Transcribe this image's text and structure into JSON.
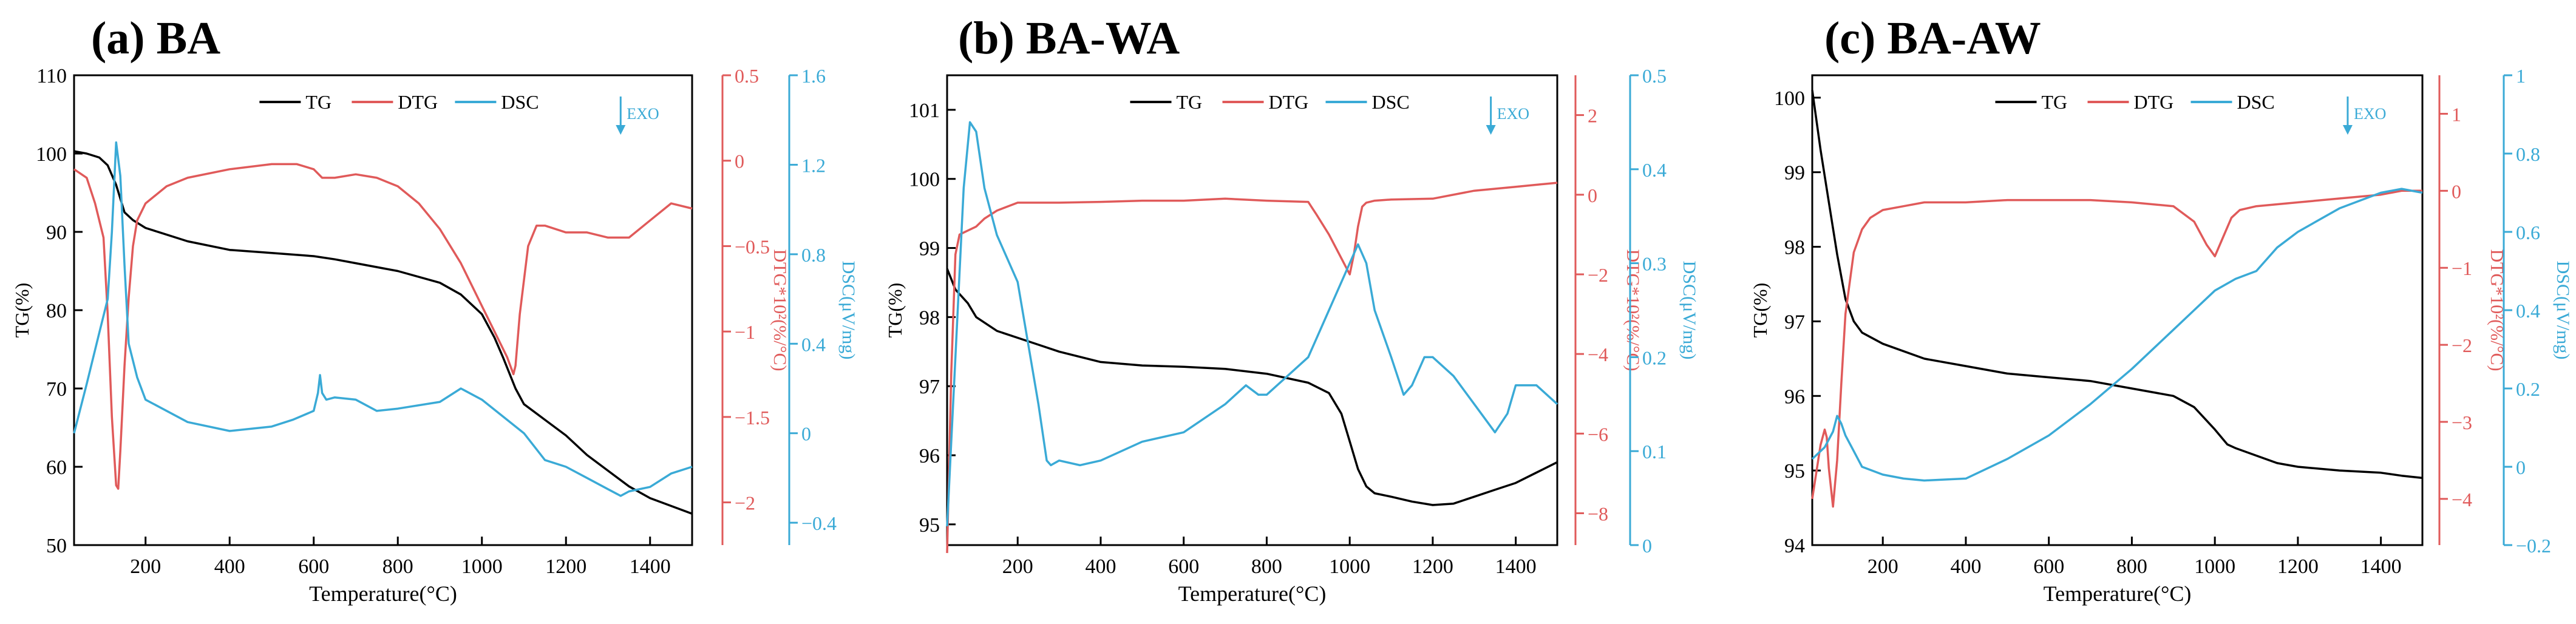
{
  "chart_data": [
    {
      "type": "line",
      "panel_label": "(a) BA",
      "xlabel": "Temperature(°C)",
      "xlim": [
        30,
        1500
      ],
      "xticks": [
        200,
        400,
        600,
        800,
        1000,
        1200,
        1400
      ],
      "y_left": {
        "label": "TG(%)",
        "lim": [
          50,
          110
        ],
        "ticks": [
          50,
          60,
          70,
          80,
          90,
          100,
          110
        ]
      },
      "y_mid": {
        "label": "DTG*10²(%/°C)",
        "lim": [
          -2.25,
          0.5
        ],
        "ticks": [
          -2.0,
          -1.5,
          -1.0,
          -0.5,
          0.0,
          0.5
        ]
      },
      "y_right": {
        "label": "DSC(μV/mg)",
        "lim": [
          -0.5,
          1.6
        ],
        "ticks": [
          -0.4,
          0.0,
          0.4,
          0.8,
          1.2,
          1.6
        ]
      },
      "exo_label": "EXO",
      "exo_x": 1330,
      "legend": [
        {
          "label": "TG",
          "color": "#000000"
        },
        {
          "label": "DTG",
          "color": "#e05a5a"
        },
        {
          "label": "DSC",
          "color": "#3aaad6"
        }
      ],
      "series": [
        {
          "name": "TG",
          "axis": "left",
          "color": "#000000",
          "x": [
            30,
            60,
            90,
            110,
            130,
            150,
            170,
            200,
            300,
            400,
            500,
            600,
            650,
            700,
            800,
            900,
            950,
            1000,
            1030,
            1050,
            1080,
            1100,
            1150,
            1200,
            1250,
            1300,
            1350,
            1400,
            1450,
            1500
          ],
          "y": [
            100.3,
            100.0,
            99.5,
            98.5,
            96.0,
            92.5,
            91.5,
            90.5,
            88.8,
            87.7,
            87.3,
            86.9,
            86.5,
            86.0,
            85.0,
            83.5,
            82.0,
            79.5,
            76.5,
            74.0,
            70.0,
            68.0,
            66.0,
            64.0,
            61.5,
            59.5,
            57.5,
            56.0,
            55.0,
            54.0
          ]
        },
        {
          "name": "DTG",
          "axis": "mid",
          "color": "#e05a5a",
          "x": [
            30,
            60,
            80,
            100,
            110,
            120,
            130,
            135,
            140,
            150,
            160,
            170,
            180,
            200,
            250,
            300,
            400,
            500,
            560,
            600,
            620,
            650,
            700,
            750,
            800,
            850,
            900,
            950,
            1000,
            1030,
            1060,
            1075,
            1080,
            1090,
            1110,
            1130,
            1150,
            1200,
            1250,
            1300,
            1350,
            1400,
            1450,
            1500
          ],
          "y": [
            -0.05,
            -0.1,
            -0.25,
            -0.45,
            -0.9,
            -1.5,
            -1.9,
            -1.92,
            -1.7,
            -1.2,
            -0.8,
            -0.5,
            -0.35,
            -0.25,
            -0.15,
            -0.1,
            -0.05,
            -0.02,
            -0.02,
            -0.05,
            -0.1,
            -0.1,
            -0.08,
            -0.1,
            -0.15,
            -0.25,
            -0.4,
            -0.6,
            -0.85,
            -1.0,
            -1.15,
            -1.25,
            -1.2,
            -0.9,
            -0.5,
            -0.38,
            -0.38,
            -0.42,
            -0.42,
            -0.45,
            -0.45,
            -0.35,
            -0.25,
            -0.28
          ]
        },
        {
          "name": "DSC",
          "axis": "right",
          "color": "#3aaad6",
          "x": [
            30,
            60,
            90,
            110,
            120,
            130,
            140,
            150,
            160,
            180,
            200,
            300,
            400,
            500,
            550,
            600,
            610,
            615,
            620,
            630,
            650,
            700,
            750,
            800,
            900,
            950,
            1000,
            1100,
            1150,
            1200,
            1250,
            1300,
            1330,
            1350,
            1400,
            1450,
            1500
          ],
          "y": [
            0.0,
            0.22,
            0.45,
            0.6,
            0.9,
            1.3,
            1.15,
            0.75,
            0.4,
            0.25,
            0.15,
            0.05,
            0.01,
            0.03,
            0.06,
            0.1,
            0.18,
            0.26,
            0.18,
            0.15,
            0.16,
            0.15,
            0.1,
            0.11,
            0.14,
            0.2,
            0.15,
            0.0,
            -0.12,
            -0.15,
            -0.2,
            -0.25,
            -0.28,
            -0.26,
            -0.24,
            -0.18,
            -0.15
          ]
        }
      ]
    },
    {
      "type": "line",
      "panel_label": "(b) BA-WA",
      "xlabel": "Temperature(°C)",
      "xlim": [
        30,
        1500
      ],
      "xticks": [
        200,
        400,
        600,
        800,
        1000,
        1200,
        1400
      ],
      "y_left": {
        "label": "TG(%)",
        "lim": [
          94.7,
          101.5
        ],
        "ticks": [
          95,
          96,
          97,
          98,
          99,
          100,
          101
        ]
      },
      "y_mid": {
        "label": "DTG*10²(%/°C)",
        "lim": [
          -8.8,
          3
        ],
        "ticks": [
          -8,
          -6,
          -4,
          -2,
          0,
          2
        ]
      },
      "y_right": {
        "label": "DSC(μV/mg)",
        "lim": [
          0.0,
          0.5
        ],
        "ticks": [
          0.0,
          0.1,
          0.2,
          0.3,
          0.4,
          0.5
        ]
      },
      "exo_label": "EXO",
      "exo_x": 1340,
      "legend": [
        {
          "label": "TG",
          "color": "#000000"
        },
        {
          "label": "DTG",
          "color": "#e05a5a"
        },
        {
          "label": "DSC",
          "color": "#3aaad6"
        }
      ],
      "series": [
        {
          "name": "TG",
          "axis": "left",
          "color": "#000000",
          "x": [
            30,
            50,
            80,
            100,
            150,
            200,
            250,
            300,
            400,
            500,
            600,
            700,
            800,
            900,
            950,
            980,
            1000,
            1020,
            1040,
            1060,
            1100,
            1150,
            1200,
            1250,
            1300,
            1350,
            1400,
            1450,
            1500
          ],
          "y": [
            98.7,
            98.4,
            98.2,
            98.0,
            97.8,
            97.7,
            97.6,
            97.5,
            97.35,
            97.3,
            97.28,
            97.25,
            97.18,
            97.05,
            96.9,
            96.6,
            96.2,
            95.8,
            95.55,
            95.45,
            95.4,
            95.33,
            95.28,
            95.3,
            95.4,
            95.5,
            95.6,
            95.75,
            95.9
          ]
        },
        {
          "name": "DTG",
          "axis": "mid",
          "color": "#e05a5a",
          "x": [
            30,
            40,
            50,
            60,
            80,
            100,
            120,
            150,
            200,
            300,
            400,
            500,
            600,
            700,
            800,
            900,
            920,
            950,
            980,
            1000,
            1010,
            1020,
            1030,
            1040,
            1060,
            1100,
            1200,
            1300,
            1400,
            1500
          ],
          "y": [
            -9.0,
            -4.5,
            -1.5,
            -1.0,
            -0.9,
            -0.8,
            -0.6,
            -0.4,
            -0.2,
            -0.2,
            -0.18,
            -0.15,
            -0.15,
            -0.1,
            -0.15,
            -0.18,
            -0.5,
            -1.0,
            -1.6,
            -2.0,
            -1.5,
            -0.8,
            -0.3,
            -0.2,
            -0.15,
            -0.12,
            -0.1,
            0.1,
            0.2,
            0.3
          ]
        },
        {
          "name": "DSC",
          "axis": "right",
          "color": "#3aaad6",
          "x": [
            30,
            50,
            70,
            85,
            100,
            120,
            150,
            200,
            250,
            270,
            280,
            300,
            350,
            400,
            500,
            600,
            700,
            750,
            780,
            800,
            850,
            900,
            950,
            1000,
            1020,
            1040,
            1060,
            1100,
            1130,
            1150,
            1180,
            1200,
            1250,
            1300,
            1350,
            1380,
            1400,
            1450,
            1500
          ],
          "y": [
            0.02,
            0.2,
            0.38,
            0.45,
            0.44,
            0.38,
            0.33,
            0.28,
            0.15,
            0.09,
            0.085,
            0.09,
            0.085,
            0.09,
            0.11,
            0.12,
            0.15,
            0.17,
            0.16,
            0.16,
            0.18,
            0.2,
            0.25,
            0.3,
            0.32,
            0.3,
            0.25,
            0.2,
            0.16,
            0.17,
            0.2,
            0.2,
            0.18,
            0.15,
            0.12,
            0.14,
            0.17,
            0.17,
            0.15
          ]
        }
      ]
    },
    {
      "type": "line",
      "panel_label": "(c) BA-AW",
      "xlabel": "Temperature(°C)",
      "xlim": [
        30,
        1500
      ],
      "xticks": [
        200,
        400,
        600,
        800,
        1000,
        1200,
        1400
      ],
      "y_left": {
        "label": "TG(%)",
        "lim": [
          94,
          100.3
        ],
        "ticks": [
          94,
          95,
          96,
          97,
          98,
          99,
          100
        ]
      },
      "y_mid": {
        "label": "DTG*10²(%/°C)",
        "lim": [
          -4.6,
          1.5
        ],
        "ticks": [
          -4,
          -3,
          -2,
          -1,
          0,
          1
        ]
      },
      "y_right": {
        "label": "DSC(μV/mg)",
        "lim": [
          -0.2,
          1.0
        ],
        "ticks": [
          -0.2,
          0.0,
          0.2,
          0.4,
          0.6,
          0.8,
          1.0
        ]
      },
      "exo_label": "EXO",
      "exo_x": 1320,
      "legend": [
        {
          "label": "TG",
          "color": "#000000"
        },
        {
          "label": "DTG",
          "color": "#e05a5a"
        },
        {
          "label": "DSC",
          "color": "#3aaad6"
        }
      ],
      "series": [
        {
          "name": "TG",
          "axis": "left",
          "color": "#000000",
          "x": [
            30,
            50,
            70,
            90,
            110,
            130,
            150,
            200,
            300,
            400,
            500,
            600,
            700,
            800,
            900,
            950,
            1000,
            1030,
            1050,
            1100,
            1150,
            1200,
            1300,
            1400,
            1450,
            1500
          ],
          "y": [
            100.1,
            99.3,
            98.6,
            97.9,
            97.3,
            97.0,
            96.85,
            96.7,
            96.5,
            96.4,
            96.3,
            96.25,
            96.2,
            96.1,
            96.0,
            95.85,
            95.55,
            95.35,
            95.3,
            95.2,
            95.1,
            95.05,
            95.0,
            94.97,
            94.93,
            94.9
          ]
        },
        {
          "name": "DTG",
          "axis": "mid",
          "color": "#e05a5a",
          "x": [
            30,
            50,
            60,
            65,
            70,
            80,
            90,
            100,
            110,
            130,
            150,
            170,
            200,
            250,
            300,
            400,
            500,
            600,
            700,
            800,
            900,
            950,
            980,
            1000,
            1020,
            1040,
            1060,
            1100,
            1200,
            1300,
            1400,
            1450,
            1500
          ],
          "y": [
            -4.0,
            -3.3,
            -3.1,
            -3.2,
            -3.6,
            -4.1,
            -3.5,
            -2.5,
            -1.6,
            -0.8,
            -0.5,
            -0.35,
            -0.25,
            -0.2,
            -0.15,
            -0.15,
            -0.12,
            -0.12,
            -0.12,
            -0.15,
            -0.2,
            -0.4,
            -0.7,
            -0.85,
            -0.6,
            -0.35,
            -0.25,
            -0.2,
            -0.15,
            -0.1,
            -0.05,
            0.0,
            0.0
          ]
        },
        {
          "name": "DSC",
          "axis": "right",
          "color": "#3aaad6",
          "x": [
            30,
            60,
            80,
            90,
            100,
            110,
            130,
            150,
            200,
            250,
            300,
            400,
            500,
            600,
            700,
            800,
            900,
            950,
            1000,
            1050,
            1100,
            1150,
            1200,
            1300,
            1400,
            1450,
            1500
          ],
          "y": [
            0.02,
            0.05,
            0.09,
            0.13,
            0.11,
            0.08,
            0.04,
            0.0,
            -0.02,
            -0.03,
            -0.035,
            -0.03,
            0.02,
            0.08,
            0.16,
            0.25,
            0.35,
            0.4,
            0.45,
            0.48,
            0.5,
            0.56,
            0.6,
            0.66,
            0.7,
            0.71,
            0.7
          ]
        }
      ]
    }
  ]
}
